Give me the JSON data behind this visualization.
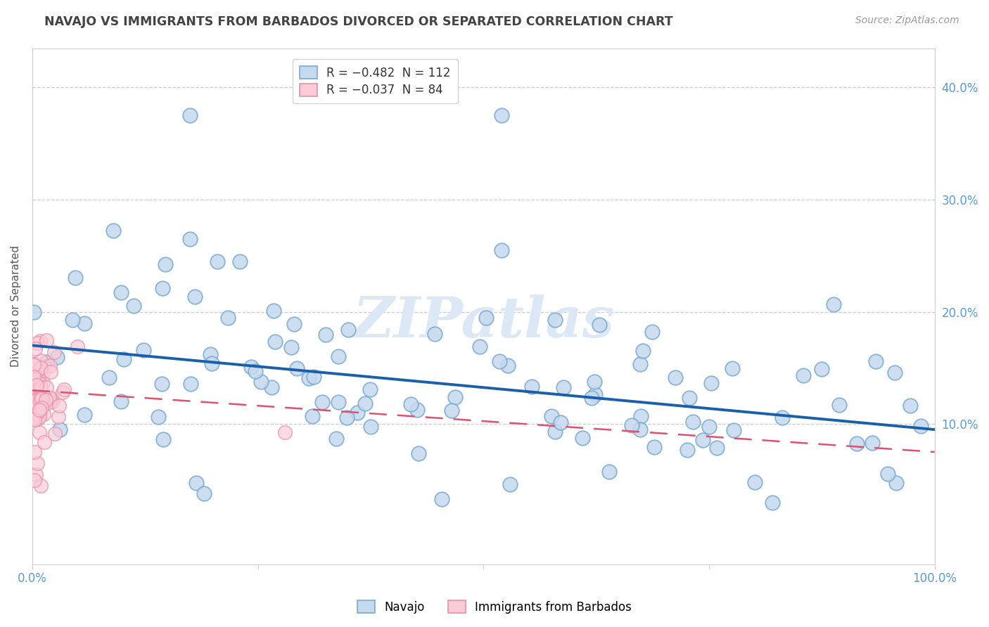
{
  "title": "NAVAJO VS IMMIGRANTS FROM BARBADOS DIVORCED OR SEPARATED CORRELATION CHART",
  "source": "Source: ZipAtlas.com",
  "ylabel": "Divorced or Separated",
  "watermark": "ZIPatlas",
  "navajo_R": -0.482,
  "navajo_N": 112,
  "barbados_R": -0.037,
  "barbados_N": 84,
  "navajo_line_intercept": 0.17,
  "navajo_line_slope": -0.075,
  "barbados_line_intercept": 0.13,
  "barbados_line_slope": -0.055,
  "background_color": "#ffffff",
  "grid_color": "#cccccc",
  "scatter_blue_face": "#c5d9ee",
  "scatter_blue_edge": "#7aaad0",
  "scatter_pink_face": "#f9ccd8",
  "scatter_pink_edge": "#e890a8",
  "line_blue": "#1a5faa",
  "line_pink": "#e05070",
  "title_color": "#444444",
  "axis_color": "#5b9bd5",
  "watermark_color": "#dce8f5",
  "xlim": [
    0,
    1.0
  ],
  "ylim": [
    -0.025,
    0.435
  ],
  "ytick_vals": [
    0.1,
    0.2,
    0.3,
    0.4
  ],
  "ytick_labels": [
    "10.0%",
    "20.0%",
    "30.0%",
    "40.0%"
  ]
}
